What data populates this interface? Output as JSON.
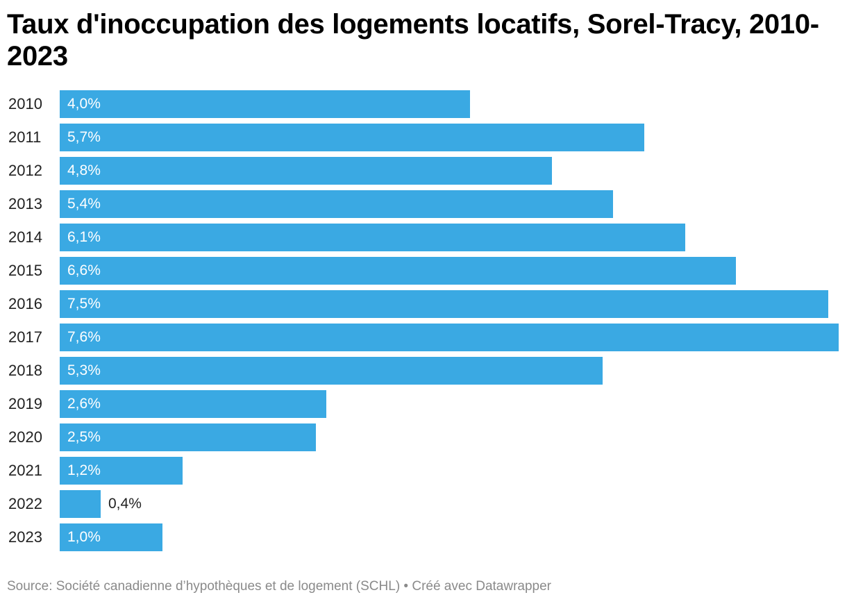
{
  "chart_data": {
    "type": "bar",
    "orientation": "horizontal",
    "title": "Taux d'inoccupation des logements locatifs, Sorel-Tracy, 2010-2023",
    "categories": [
      "2010",
      "2011",
      "2012",
      "2013",
      "2014",
      "2015",
      "2016",
      "2017",
      "2018",
      "2019",
      "2020",
      "2021",
      "2022",
      "2023"
    ],
    "values": [
      4.0,
      5.7,
      4.8,
      5.4,
      6.1,
      6.6,
      7.5,
      7.6,
      5.3,
      2.6,
      2.5,
      1.2,
      0.4,
      1.0
    ],
    "value_labels": [
      "4,0%",
      "5,7%",
      "4,8%",
      "5,4%",
      "6,1%",
      "6,6%",
      "7,5%",
      "7,6%",
      "5,3%",
      "2,6%",
      "2,5%",
      "1,2%",
      "0,4%",
      "1,0%"
    ],
    "xlim": [
      0,
      7.6
    ],
    "bar_color": "#3aa9e3",
    "grid": false,
    "legend": "none"
  },
  "footer": {
    "source": "Source: Société canadienne d’hypothèques et de logement (SCHL) • Créé avec Datawrapper"
  }
}
